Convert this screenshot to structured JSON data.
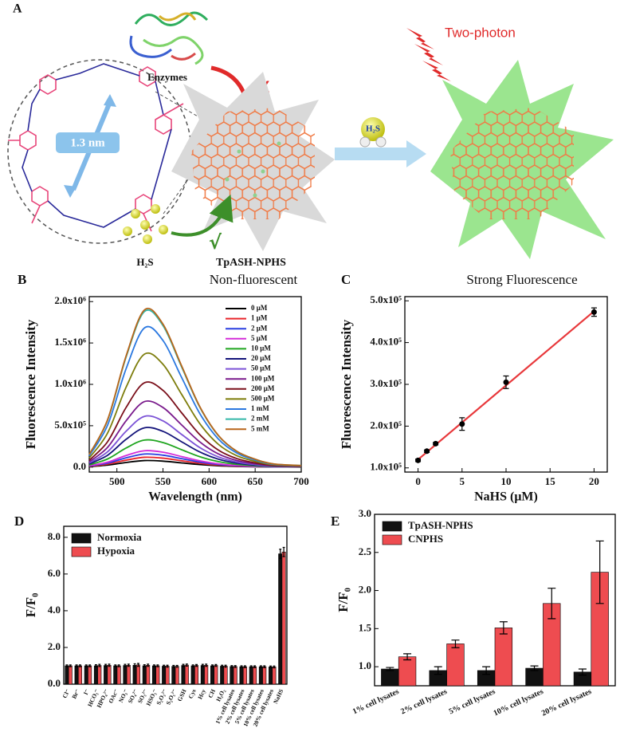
{
  "panel_a": {
    "label": "A",
    "enzymes": "Enzymes",
    "cross": "X",
    "two_photon": "Two-photon",
    "size": "1.3 nm",
    "badge": "H₂S",
    "h2s": "H₂S",
    "check": "√",
    "probe_name": "TpASH-NPHS",
    "probe_state": "Non-fluorescent",
    "result": "Strong Fluorescence"
  },
  "chart_data": [
    {
      "type": "line",
      "panel_label": "B",
      "xlabel": "Wavelength (nm)",
      "ylabel": "Fluorescence Intensity",
      "x": [
        470,
        490,
        510,
        530,
        550,
        570,
        590,
        610,
        630,
        650,
        670,
        700
      ],
      "xlim": [
        470,
        700
      ],
      "xticks": [
        500,
        550,
        600,
        650,
        700
      ],
      "ylim": [
        -60000,
        2060000
      ],
      "yticks": [
        {
          "value": 0,
          "label": "0.0"
        },
        {
          "value": 500000,
          "label": "5.0x10⁵"
        },
        {
          "value": 1000000,
          "label": "1.0x10⁶"
        },
        {
          "value": 1500000,
          "label": "1.5x10⁶"
        },
        {
          "value": 2000000,
          "label": "2.0x10⁶"
        }
      ],
      "legend": "upper right",
      "series": [
        {
          "name": "0 μM",
          "color": "#000000",
          "values": [
            6400,
            24000,
            56000,
            79200,
            72000,
            51200,
            30400,
            16000,
            8000,
            4000,
            1600,
            800
          ]
        },
        {
          "name": "1 μM",
          "color": "#e8252a",
          "values": [
            9600,
            36000,
            84000,
            118800,
            108000,
            76800,
            45600,
            24000,
            12000,
            6000,
            2400,
            1200
          ]
        },
        {
          "name": "2 μM",
          "color": "#2b3fe0",
          "values": [
            12800,
            48000,
            112000,
            158400,
            144000,
            102400,
            60800,
            32000,
            16000,
            8000,
            3200,
            1600
          ]
        },
        {
          "name": "5 μM",
          "color": "#d42dd8",
          "values": [
            16000,
            60000,
            140000,
            198000,
            180000,
            128000,
            76000,
            40000,
            20000,
            10000,
            4000,
            2000
          ]
        },
        {
          "name": "10 μM",
          "color": "#1fa51f",
          "values": [
            26400,
            99000,
            231000,
            326700,
            297000,
            211200,
            125400,
            66000,
            33000,
            16500,
            6600,
            3300
          ]
        },
        {
          "name": "20 μM",
          "color": "#13137a",
          "values": [
            38400,
            144000,
            336000,
            475200,
            432000,
            307200,
            182400,
            96000,
            48000,
            24000,
            9600,
            4800
          ]
        },
        {
          "name": "50 μM",
          "color": "#7b52d6",
          "values": [
            49600,
            186000,
            434000,
            613800,
            558000,
            396800,
            235600,
            124000,
            62000,
            31000,
            12400,
            6200
          ]
        },
        {
          "name": "100 μM",
          "color": "#7a1b8c",
          "values": [
            64000,
            240000,
            560000,
            792000,
            720000,
            512000,
            304000,
            160000,
            80000,
            40000,
            16000,
            8000
          ]
        },
        {
          "name": "200 μM",
          "color": "#7a0f1a",
          "values": [
            82400,
            309000,
            721000,
            1019700,
            927000,
            659200,
            391400,
            206000,
            103000,
            51500,
            20600,
            10300
          ]
        },
        {
          "name": "500 μM",
          "color": "#7d7d0c",
          "values": [
            110400,
            414000,
            966000,
            1366200,
            1242000,
            883200,
            524400,
            276000,
            138000,
            69000,
            27600,
            13800
          ]
        },
        {
          "name": "1 mM",
          "color": "#2a78e0",
          "values": [
            136000,
            510000,
            1190000,
            1683000,
            1530000,
            1088000,
            646000,
            340000,
            170000,
            85000,
            34000,
            17000
          ]
        },
        {
          "name": "2 mM",
          "color": "#33b6a8",
          "values": [
            152000,
            570000,
            1330000,
            1881000,
            1710000,
            1216000,
            722000,
            380000,
            190000,
            95000,
            38000,
            19000
          ]
        },
        {
          "name": "5 mM",
          "color": "#b8651b",
          "values": [
            153600,
            576000,
            1344000,
            1900800,
            1728000,
            1228800,
            729600,
            384000,
            192000,
            96000,
            38400,
            19200
          ]
        }
      ]
    },
    {
      "type": "scatter",
      "panel_label": "C",
      "xlabel": "NaHS (μM)",
      "ylabel": "Fluorescence Intensity",
      "xlim": [
        -1.5,
        21.5
      ],
      "xticks": [
        0,
        5,
        10,
        15,
        20
      ],
      "ylim": [
        90000,
        510000
      ],
      "yticks": [
        {
          "value": 100000,
          "label": "1.0x10⁵"
        },
        {
          "value": 200000,
          "label": "2.0x10⁵"
        },
        {
          "value": 300000,
          "label": "3.0x10⁵"
        },
        {
          "value": 400000,
          "label": "4.0x10⁵"
        },
        {
          "value": 500000,
          "label": "5.0x10⁵"
        }
      ],
      "series": [
        {
          "color": "#000000",
          "x": [
            0,
            1,
            2,
            5,
            10,
            20
          ],
          "values": [
            118000,
            140000,
            158000,
            205000,
            305000,
            473000
          ],
          "errors": [
            3000,
            3000,
            3000,
            15000,
            15000,
            10000
          ]
        }
      ],
      "fit": {
        "color": "#e8383b",
        "x": [
          0,
          20
        ],
        "values": [
          120000,
          475000
        ]
      }
    },
    {
      "type": "bar",
      "panel_label": "D",
      "ylabel": "F/F₀",
      "categories": [
        "Cl⁻",
        "Br⁻",
        "I⁻",
        "HCO₃⁻",
        "HPO₄²⁻",
        "OAc⁻",
        "NO₃⁻",
        "SO₄²⁻",
        "SO₃²⁻",
        "HSO₃⁻",
        "S₂O₃²⁻",
        "S₂O₅²⁻",
        "GSH",
        "Cys",
        "Hcy",
        "CH",
        "H₂O₂",
        "1% cell lysates",
        "2% cell lysates",
        "5% cell lysates",
        "10% cell lysates",
        "20% cell lysates",
        "NaHS"
      ],
      "ylim": [
        0,
        8.6
      ],
      "yticks": [
        {
          "value": 0,
          "label": "0.0"
        },
        {
          "value": 2,
          "label": "2.0"
        },
        {
          "value": 4,
          "label": "4.0"
        },
        {
          "value": 6,
          "label": "6.0"
        },
        {
          "value": 8,
          "label": "8.0"
        }
      ],
      "legend": "upper left",
      "series": [
        {
          "name": "Normoxia",
          "color": "#111111",
          "values": [
            1.0,
            1.0,
            1.0,
            1.0,
            1.02,
            1.0,
            1.02,
            1.03,
            1.0,
            1.0,
            0.98,
            0.97,
            1.02,
            1.0,
            1.02,
            1.0,
            0.98,
            0.96,
            0.95,
            0.95,
            0.95,
            0.94,
            7.1
          ],
          "errors": [
            0.05,
            0.05,
            0.05,
            0.06,
            0.06,
            0.05,
            0.06,
            0.08,
            0.06,
            0.05,
            0.05,
            0.05,
            0.06,
            0.05,
            0.06,
            0.05,
            0.05,
            0.05,
            0.05,
            0.05,
            0.05,
            0.05,
            0.25
          ]
        },
        {
          "name": "Hypoxia",
          "color": "#ee4c50",
          "values": [
            1.0,
            1.0,
            1.0,
            1.02,
            1.03,
            1.0,
            1.03,
            1.05,
            1.03,
            1.0,
            0.98,
            0.97,
            1.04,
            1.02,
            1.03,
            1.02,
            0.98,
            0.96,
            0.95,
            0.95,
            0.95,
            0.94,
            7.2
          ],
          "errors": [
            0.05,
            0.05,
            0.05,
            0.06,
            0.06,
            0.05,
            0.06,
            0.08,
            0.06,
            0.05,
            0.05,
            0.05,
            0.06,
            0.05,
            0.06,
            0.05,
            0.05,
            0.05,
            0.05,
            0.05,
            0.05,
            0.05,
            0.25
          ]
        }
      ]
    },
    {
      "type": "bar",
      "panel_label": "E",
      "ylabel": "F/F₀",
      "categories": [
        "1% cell lysates",
        "2% cell lysates",
        "5% cell lysates",
        "10% cell lysates",
        "20% cell lysates"
      ],
      "ylim": [
        0.75,
        3.0
      ],
      "yticks": [
        {
          "value": 1,
          "label": "1.0"
        },
        {
          "value": 1.5,
          "label": "1.5"
        },
        {
          "value": 2,
          "label": "2.0"
        },
        {
          "value": 2.5,
          "label": "2.5"
        },
        {
          "value": 3,
          "label": "3.0"
        }
      ],
      "legend": "upper left",
      "series": [
        {
          "name": "TpASH-NPHS",
          "color": "#111111",
          "values": [
            0.97,
            0.95,
            0.95,
            0.98,
            0.93
          ],
          "errors": [
            0.02,
            0.05,
            0.05,
            0.03,
            0.04
          ]
        },
        {
          "name": "CNPHS",
          "color": "#ee4c50",
          "values": [
            1.13,
            1.3,
            1.51,
            1.83,
            2.24
          ],
          "errors": [
            0.04,
            0.05,
            0.08,
            0.2,
            0.41
          ]
        }
      ]
    }
  ]
}
